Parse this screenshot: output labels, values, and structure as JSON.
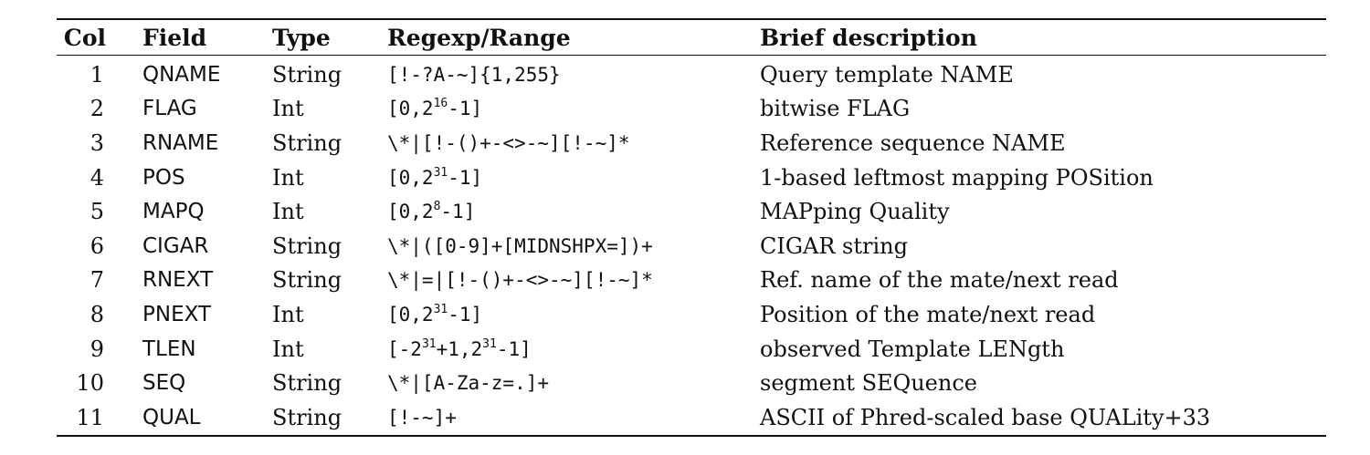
{
  "headers": {
    "col": "Col",
    "field": "Field",
    "type": "Type",
    "regexp": "Regexp/Range",
    "description": "Brief description"
  },
  "rows": [
    {
      "col": "1",
      "field": "QNAME",
      "type": "String",
      "regexp": [
        {
          "t": "[!-?A-~]{1,255}"
        }
      ],
      "description": "Query template NAME"
    },
    {
      "col": "2",
      "field": "FLAG",
      "type": "Int",
      "regexp": [
        {
          "t": "[0,2"
        },
        {
          "sup": "16"
        },
        {
          "t": "-1]"
        }
      ],
      "description": "bitwise FLAG"
    },
    {
      "col": "3",
      "field": "RNAME",
      "type": "String",
      "regexp": [
        {
          "t": "\\*|[!-()+-<>-~][!-~]*"
        }
      ],
      "description": "Reference sequence NAME"
    },
    {
      "col": "4",
      "field": "POS",
      "type": "Int",
      "regexp": [
        {
          "t": "[0,2"
        },
        {
          "sup": "31"
        },
        {
          "t": "-1]"
        }
      ],
      "description": "1-based leftmost mapping POSition"
    },
    {
      "col": "5",
      "field": "MAPQ",
      "type": "Int",
      "regexp": [
        {
          "t": "[0,2"
        },
        {
          "sup": "8"
        },
        {
          "t": "-1]"
        }
      ],
      "description": "MAPping Quality"
    },
    {
      "col": "6",
      "field": "CIGAR",
      "type": "String",
      "regexp": [
        {
          "t": "\\*|([0-9]+[MIDNSHPX=])+"
        }
      ],
      "description": "CIGAR string"
    },
    {
      "col": "7",
      "field": "RNEXT",
      "type": "String",
      "regexp": [
        {
          "t": "\\*|=|[!-()+-<>-~][!-~]*"
        }
      ],
      "description": "Ref. name of the mate/next read"
    },
    {
      "col": "8",
      "field": "PNEXT",
      "type": "Int",
      "regexp": [
        {
          "t": "[0,2"
        },
        {
          "sup": "31"
        },
        {
          "t": "-1]"
        }
      ],
      "description": "Position of the mate/next read"
    },
    {
      "col": "9",
      "field": "TLEN",
      "type": "Int",
      "regexp": [
        {
          "t": "[-2"
        },
        {
          "sup": "31"
        },
        {
          "t": "+1,2"
        },
        {
          "sup": "31"
        },
        {
          "t": "-1]"
        }
      ],
      "description": "observed Template LENgth"
    },
    {
      "col": "10",
      "field": "SEQ",
      "type": "String",
      "regexp": [
        {
          "t": "\\*|[A-Za-z=.]+"
        }
      ],
      "description": "segment SEQuence"
    },
    {
      "col": "11",
      "field": "QUAL",
      "type": "String",
      "regexp": [
        {
          "t": "[!-~]+"
        }
      ],
      "description": "ASCII of Phred-scaled base QUALity+33"
    }
  ]
}
